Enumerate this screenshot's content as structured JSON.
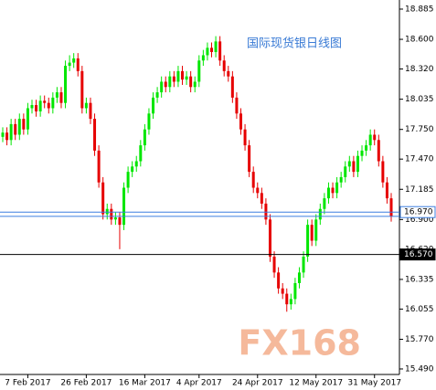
{
  "chart_data": {
    "type": "candlestick",
    "title": "国际现货银日线图",
    "watermark": "FX168",
    "ylim": [
      15.438,
      18.971
    ],
    "yticks": [
      18.885,
      {
        "value": 18.6,
        "label": "18.600"
      },
      {
        "value": 18.32,
        "label": "18.320"
      },
      18.035,
      {
        "value": 17.75,
        "label": "17.750"
      },
      {
        "value": 17.47,
        "label": "17.470"
      },
      17.185,
      {
        "value": 16.9,
        "label": "16.900"
      },
      {
        "value": 16.62,
        "label": "16.620"
      },
      16.335,
      16.055,
      {
        "value": 15.77,
        "label": "15.770"
      },
      {
        "value": 15.49,
        "label": "15.490"
      }
    ],
    "xticks": [
      {
        "value": 6,
        "label": "7 Feb 2017"
      },
      {
        "value": 20,
        "label": "26 Feb 2017"
      },
      {
        "value": 34,
        "label": "16 Mar 2017"
      },
      {
        "value": 47,
        "label": "4 Apr 2017"
      },
      {
        "value": 61,
        "label": "24 Apr 2017"
      },
      {
        "value": 75,
        "label": "12 May 2017"
      },
      {
        "value": 89,
        "label": "31 May 2017"
      }
    ],
    "up_color": "#00e600",
    "down_color": "#e60000",
    "levels": [
      {
        "value": 16.97,
        "label": "16.970",
        "color": "#3d7fe0"
      },
      {
        "value": 16.93,
        "color": "#3d7fe0"
      },
      {
        "value": 16.57,
        "label": "16.570",
        "color": "#000000"
      }
    ],
    "open": [
      17.68,
      17.72,
      17.65,
      17.8,
      17.7,
      17.85,
      17.75,
      17.95,
      17.98,
      17.92,
      18.02,
      18.0,
      17.95,
      18.05,
      18.1,
      18.0,
      18.35,
      18.38,
      18.42,
      18.3,
      17.95,
      18.0,
      17.85,
      17.55,
      17.25,
      16.95,
      17.0,
      16.9,
      16.92,
      16.85,
      17.2,
      17.35,
      17.4,
      17.45,
      17.6,
      17.75,
      17.9,
      18.05,
      18.1,
      18.2,
      18.15,
      18.25,
      18.2,
      18.3,
      18.22,
      18.25,
      18.15,
      18.2,
      18.4,
      18.45,
      18.52,
      18.48,
      18.58,
      18.4,
      18.3,
      18.25,
      18.05,
      17.9,
      17.75,
      17.6,
      17.35,
      17.2,
      17.15,
      17.05,
      16.9,
      16.55,
      16.4,
      16.25,
      16.2,
      16.1,
      16.15,
      16.3,
      16.4,
      16.55,
      16.85,
      16.7,
      16.9,
      17.0,
      17.1,
      17.2,
      17.15,
      17.25,
      17.3,
      17.4,
      17.45,
      17.35,
      17.5,
      17.55,
      17.6,
      17.7,
      17.65,
      17.45,
      17.25,
      17.1
    ],
    "high": [
      17.77,
      17.77,
      17.85,
      17.85,
      17.9,
      17.9,
      18.0,
      18.03,
      18.03,
      18.07,
      18.07,
      18.05,
      18.1,
      18.15,
      18.15,
      18.4,
      18.45,
      18.47,
      18.47,
      18.35,
      18.05,
      18.05,
      17.9,
      17.6,
      17.3,
      17.05,
      17.05,
      16.97,
      16.97,
      17.25,
      17.4,
      17.45,
      17.5,
      17.65,
      17.8,
      17.95,
      18.1,
      18.15,
      18.25,
      18.25,
      18.3,
      18.3,
      18.35,
      18.35,
      18.3,
      18.3,
      18.25,
      18.45,
      18.5,
      18.57,
      18.57,
      18.63,
      18.63,
      18.45,
      18.35,
      18.3,
      18.1,
      17.95,
      17.8,
      17.65,
      17.4,
      17.25,
      17.2,
      17.1,
      16.95,
      16.6,
      16.45,
      16.3,
      16.25,
      16.2,
      16.35,
      16.45,
      16.6,
      16.9,
      16.9,
      16.95,
      17.05,
      17.15,
      17.25,
      17.25,
      17.3,
      17.35,
      17.45,
      17.5,
      17.5,
      17.55,
      17.6,
      17.65,
      17.75,
      17.75,
      17.7,
      17.5,
      17.3,
      17.15
    ],
    "low": [
      17.63,
      17.6,
      17.6,
      17.65,
      17.65,
      17.7,
      17.7,
      17.9,
      17.87,
      17.87,
      17.95,
      17.9,
      17.9,
      18.0,
      17.95,
      17.95,
      18.3,
      18.33,
      18.25,
      17.9,
      17.9,
      17.8,
      17.5,
      17.2,
      16.9,
      16.9,
      16.85,
      16.85,
      16.62,
      16.8,
      17.15,
      17.3,
      17.35,
      17.4,
      17.55,
      17.7,
      17.85,
      18.0,
      18.05,
      18.1,
      18.1,
      18.15,
      18.15,
      18.17,
      18.17,
      18.1,
      18.1,
      18.15,
      18.35,
      18.4,
      18.43,
      18.43,
      18.35,
      18.25,
      18.2,
      18.0,
      17.85,
      17.7,
      17.55,
      17.3,
      17.15,
      17.1,
      17.0,
      16.85,
      16.5,
      16.35,
      16.2,
      16.15,
      16.03,
      16.05,
      16.1,
      16.25,
      16.35,
      16.5,
      16.65,
      16.65,
      16.85,
      16.95,
      17.05,
      17.1,
      17.1,
      17.2,
      17.25,
      17.35,
      17.3,
      17.3,
      17.45,
      17.5,
      17.55,
      17.6,
      17.4,
      17.2,
      17.05,
      16.88
    ],
    "close": [
      17.72,
      17.65,
      17.8,
      17.7,
      17.85,
      17.75,
      17.95,
      17.98,
      17.92,
      18.02,
      18.0,
      17.95,
      18.05,
      18.1,
      18.0,
      18.35,
      18.38,
      18.42,
      18.3,
      17.95,
      18.0,
      17.85,
      17.55,
      17.25,
      16.95,
      17.0,
      16.9,
      16.92,
      16.85,
      17.2,
      17.35,
      17.4,
      17.45,
      17.6,
      17.75,
      17.9,
      18.05,
      18.1,
      18.2,
      18.15,
      18.25,
      18.2,
      18.3,
      18.22,
      18.25,
      18.15,
      18.2,
      18.4,
      18.45,
      18.52,
      18.48,
      18.58,
      18.4,
      18.3,
      18.25,
      18.05,
      17.9,
      17.75,
      17.6,
      17.35,
      17.2,
      17.15,
      17.05,
      16.9,
      16.55,
      16.4,
      16.25,
      16.2,
      16.1,
      16.15,
      16.3,
      16.4,
      16.55,
      16.85,
      16.7,
      16.9,
      17.0,
      17.1,
      17.2,
      17.15,
      17.25,
      17.3,
      17.4,
      17.45,
      17.35,
      17.5,
      17.55,
      17.6,
      17.7,
      17.65,
      17.45,
      17.25,
      17.1,
      16.93
    ]
  }
}
